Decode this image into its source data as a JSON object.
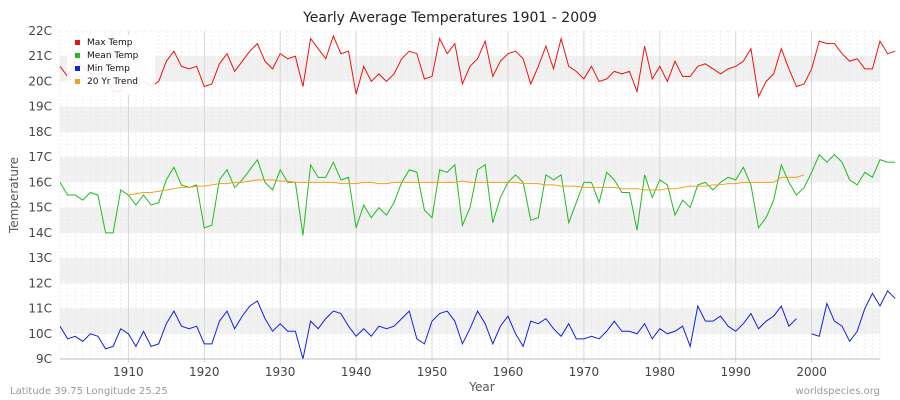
{
  "footer": {
    "location": "Latitude 39.75 Longitude 25.25",
    "source": "worldspecies.org"
  },
  "chart_data": {
    "type": "line",
    "title": "Yearly Average Temperatures 1901 - 2009",
    "xlabel": "Year",
    "ylabel": "Temperature",
    "xlim": [
      1901,
      2009
    ],
    "ylim": [
      9,
      22
    ],
    "x_ticks": [
      1910,
      1920,
      1930,
      1940,
      1950,
      1960,
      1970,
      1980,
      1990,
      2000
    ],
    "y_ticks": [
      9,
      10,
      11,
      12,
      13,
      14,
      15,
      16,
      17,
      18,
      19,
      20,
      21,
      22
    ],
    "y_tick_labels": [
      "9C",
      "10C",
      "11C",
      "12C",
      "13C",
      "14C",
      "15C",
      "16C",
      "17C",
      "18C",
      "19C",
      "20C",
      "21C",
      "22C"
    ],
    "x_tick_labels": [
      "1910",
      "1920",
      "1930",
      "1940",
      "1950",
      "1960",
      "1970",
      "1980",
      "1990",
      "2000"
    ],
    "grid": true,
    "legend_position": "top-left",
    "series": [
      {
        "name": "Max Temp",
        "color": "#ee1111",
        "x_start": 1901,
        "values": [
          20.6,
          20.2,
          20.8,
          20.6,
          20.3,
          20.3,
          20.3,
          19.6,
          19.6,
          20.5,
          19.8,
          20.0,
          19.8,
          20.0,
          20.8,
          21.2,
          20.6,
          20.5,
          20.6,
          19.8,
          19.9,
          20.7,
          21.1,
          20.4,
          20.8,
          21.2,
          21.5,
          20.8,
          20.5,
          21.1,
          20.9,
          21.0,
          19.8,
          21.7,
          21.3,
          20.9,
          21.8,
          21.1,
          21.2,
          19.5,
          20.6,
          20.0,
          20.3,
          20.0,
          20.3,
          20.9,
          21.2,
          21.1,
          20.1,
          20.2,
          21.7,
          21.1,
          21.5,
          19.9,
          20.6,
          20.9,
          21.6,
          20.2,
          20.8,
          21.1,
          21.2,
          20.9,
          19.9,
          20.6,
          21.4,
          20.5,
          21.7,
          20.6,
          20.4,
          20.1,
          20.6,
          20.0,
          20.1,
          20.4,
          20.3,
          20.4,
          19.6,
          21.4,
          20.1,
          20.6,
          20.0,
          20.8,
          20.2,
          20.2,
          20.6,
          20.7,
          20.5,
          20.3,
          20.5,
          20.6,
          20.8,
          21.3,
          19.4,
          20.0,
          20.3,
          21.3,
          20.5,
          19.8,
          19.9,
          20.5,
          21.6,
          21.5,
          21.5,
          21.1,
          20.8,
          20.9,
          20.5,
          20.5,
          21.6,
          21.1,
          21.2
        ],
        "missing": []
      },
      {
        "name": "Mean Temp",
        "color": "#22bb22",
        "x_start": 1901,
        "values": [
          16.0,
          15.5,
          15.5,
          15.3,
          15.6,
          15.5,
          14.0,
          14.0,
          15.7,
          15.5,
          15.1,
          15.5,
          15.1,
          15.2,
          16.1,
          16.6,
          15.9,
          15.8,
          15.9,
          14.2,
          14.3,
          16.1,
          16.5,
          15.8,
          16.1,
          16.5,
          16.9,
          16.0,
          15.7,
          16.5,
          16.0,
          16.0,
          13.9,
          16.7,
          16.2,
          16.2,
          16.8,
          16.1,
          16.2,
          14.2,
          15.1,
          14.6,
          15.0,
          14.7,
          15.2,
          16.0,
          16.5,
          16.4,
          14.9,
          14.6,
          16.5,
          16.4,
          16.7,
          14.3,
          15.0,
          16.5,
          16.7,
          14.4,
          15.4,
          16.0,
          16.3,
          16.0,
          14.5,
          14.6,
          16.3,
          16.1,
          16.3,
          14.4,
          15.2,
          16.0,
          16.0,
          15.2,
          16.4,
          16.1,
          15.6,
          15.6,
          14.1,
          16.3,
          15.4,
          16.1,
          15.9,
          14.7,
          15.3,
          15.0,
          15.9,
          16.0,
          15.7,
          16.0,
          16.2,
          16.1,
          16.6,
          15.9,
          14.2,
          14.6,
          15.3,
          16.7,
          16.0,
          15.5,
          15.8,
          16.4,
          17.1,
          16.8,
          17.1,
          16.8,
          16.1,
          15.9,
          16.4,
          16.2,
          16.9,
          16.8,
          16.8
        ],
        "missing": []
      },
      {
        "name": "Min Temp",
        "color": "#1122dd",
        "x_start": 1901,
        "values": [
          10.3,
          9.8,
          9.9,
          9.7,
          10.0,
          9.9,
          9.4,
          9.5,
          10.2,
          10.0,
          9.5,
          10.1,
          9.5,
          9.6,
          10.4,
          10.9,
          10.3,
          10.2,
          10.3,
          9.6,
          9.6,
          10.5,
          10.9,
          10.2,
          10.7,
          11.1,
          11.3,
          10.6,
          10.1,
          10.4,
          10.1,
          10.1,
          9.0,
          10.5,
          10.2,
          10.6,
          10.9,
          10.8,
          10.3,
          9.9,
          10.2,
          9.9,
          10.3,
          10.2,
          10.3,
          10.6,
          10.9,
          9.8,
          9.6,
          10.5,
          10.8,
          10.9,
          10.5,
          9.6,
          10.2,
          10.9,
          10.4,
          9.6,
          10.3,
          10.7,
          10.0,
          9.5,
          10.5,
          10.4,
          10.6,
          10.2,
          9.9,
          10.4,
          9.8,
          9.8,
          9.9,
          9.8,
          10.1,
          10.5,
          10.1,
          10.1,
          10.0,
          10.4,
          9.8,
          10.2,
          10.0,
          10.1,
          10.3,
          9.5,
          11.1,
          10.5,
          10.5,
          10.7,
          10.3,
          10.1,
          10.4,
          10.8,
          10.2,
          10.5,
          10.7,
          11.1,
          10.3,
          10.6,
          null,
          10.0,
          9.9,
          11.2,
          10.5,
          10.3,
          9.7,
          10.1,
          11.0,
          11.6,
          11.1,
          11.7,
          11.4
        ],
        "missing": [
          1990
        ]
      },
      {
        "name": "20 Yr Trend",
        "color": "#f0a020",
        "x_start": 1910,
        "values": [
          15.5,
          15.55,
          15.6,
          15.6,
          15.65,
          15.7,
          15.75,
          15.8,
          15.8,
          15.85,
          15.85,
          15.9,
          15.95,
          15.95,
          16.0,
          16.0,
          16.05,
          16.1,
          16.1,
          16.1,
          16.05,
          16.05,
          16.0,
          16.0,
          16.0,
          16.0,
          16.0,
          16.0,
          15.95,
          15.95,
          15.95,
          16.0,
          16.0,
          15.95,
          15.95,
          16.0,
          16.0,
          16.0,
          16.0,
          16.0,
          16.0,
          16.0,
          16.0,
          16.0,
          16.05,
          16.0,
          16.0,
          16.0,
          16.0,
          16.0,
          16.0,
          16.0,
          15.95,
          15.95,
          15.95,
          15.9,
          15.9,
          15.85,
          15.85,
          15.85,
          15.8,
          15.8,
          15.8,
          15.8,
          15.8,
          15.75,
          15.75,
          15.75,
          15.7,
          15.7,
          15.7,
          15.75,
          15.75,
          15.8,
          15.85,
          15.85,
          15.85,
          15.9,
          15.9,
          15.95,
          15.95,
          16.0,
          16.0,
          16.0,
          16.0,
          16.0,
          16.2,
          16.2,
          16.2,
          16.3
        ]
      }
    ]
  }
}
